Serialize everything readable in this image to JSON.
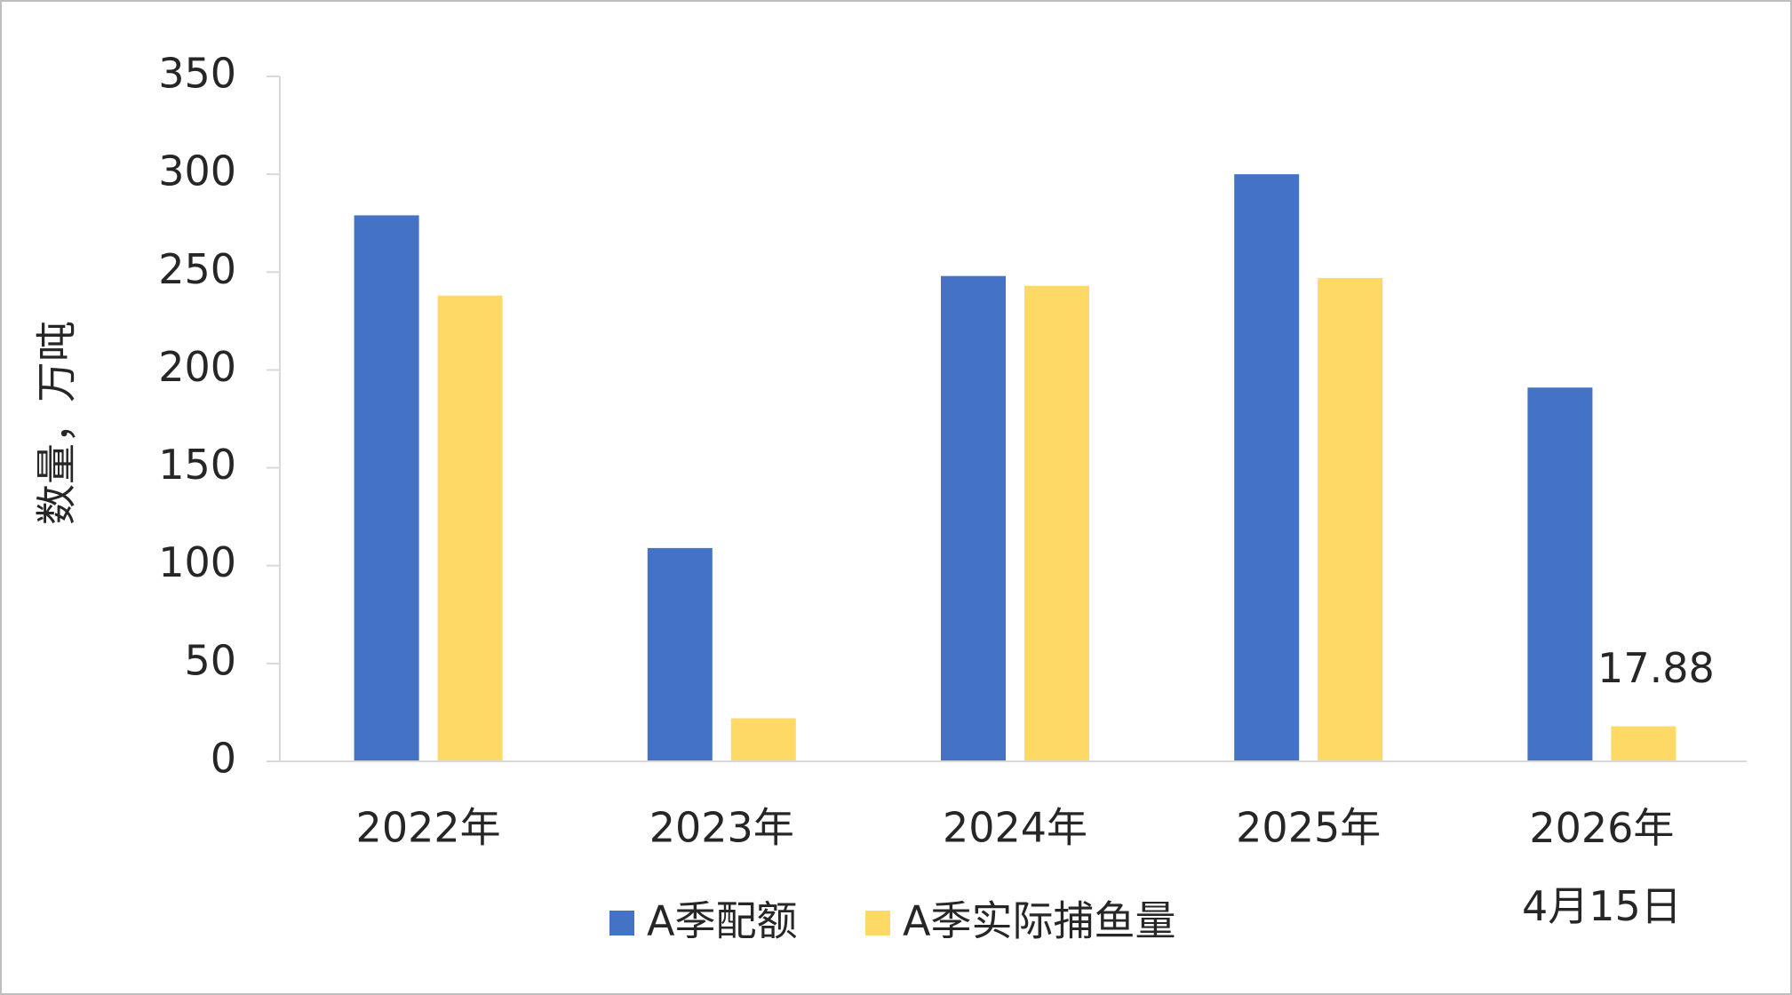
{
  "chart_data": {
    "type": "bar",
    "y_label": "数量，万吨",
    "categories": [
      "2022年",
      "2023年",
      "2024年",
      "2025年",
      "2026年\n4月15日"
    ],
    "series": [
      {
        "name": "A季配额",
        "color": "#4472c4",
        "values": [
          279,
          109,
          248,
          300,
          191
        ]
      },
      {
        "name": "A季实际捕鱼量",
        "color": "#ffd966",
        "values": [
          238,
          22,
          243,
          247,
          17.88
        ],
        "value_labels": [
          null,
          null,
          null,
          null,
          "17.88"
        ]
      }
    ],
    "ylim": [
      0,
      350
    ],
    "yticks": [
      0,
      50,
      100,
      150,
      200,
      250,
      300,
      350
    ],
    "grid": false,
    "legend": "bottom"
  }
}
